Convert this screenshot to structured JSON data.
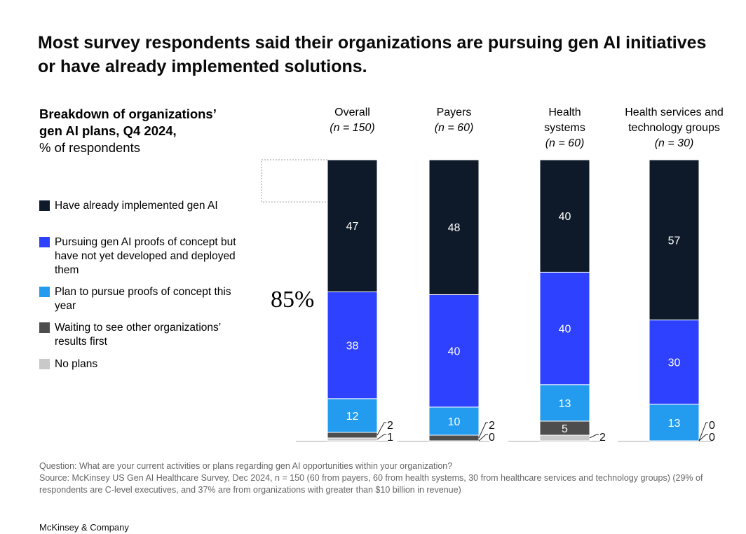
{
  "title": "Most survey respondents said their organizations are pursuing gen AI initiatives or have already implemented solutions.",
  "chart_data": {
    "type": "bar",
    "stacked": true,
    "subtitle_bold": "Breakdown of organizations’ gen AI plans, Q4 2024,",
    "subtitle_unit": "% of respondents",
    "categories": [
      {
        "name": "Overall",
        "n": "(n = 150)"
      },
      {
        "name": "Payers",
        "n": "(n = 60)"
      },
      {
        "name": "Health systems",
        "n": "(n = 60)"
      },
      {
        "name": "Health services and technology groups",
        "n": "(n = 30)"
      }
    ],
    "series": [
      {
        "name": "Have already implemented gen AI",
        "color": "#0e1a29",
        "values": [
          47,
          48,
          40,
          57
        ]
      },
      {
        "name": "Pursuing gen AI proofs of concept but have not yet developed and deployed them",
        "color": "#2d41ff",
        "values": [
          38,
          40,
          40,
          30
        ]
      },
      {
        "name": "Plan to pursue proofs of concept this year",
        "color": "#239cf0",
        "values": [
          12,
          10,
          13,
          13
        ]
      },
      {
        "name": "Waiting to see other organizations’ results first",
        "color": "#4d4d4d",
        "values": [
          2,
          2,
          5,
          0
        ]
      },
      {
        "name": "No plans",
        "color": "#c9c9c9",
        "values": [
          1,
          0,
          2,
          0
        ]
      }
    ],
    "annotation": "85%",
    "ylim": [
      0,
      100
    ],
    "legend_position": "left"
  },
  "footnote": {
    "question": "Question: What are your current activities or plans regarding gen AI opportunities within your organization?",
    "source": "Source: McKinsey US Gen AI Healthcare Survey, Dec 2024, n = 150 (60 from payers, 60 from health systems, 30 from healthcare services and technology groups) (29% of respondents are C-level executives, and 37% are from organizations with greater than $10 billion in revenue)"
  },
  "brand": "McKinsey & Company"
}
